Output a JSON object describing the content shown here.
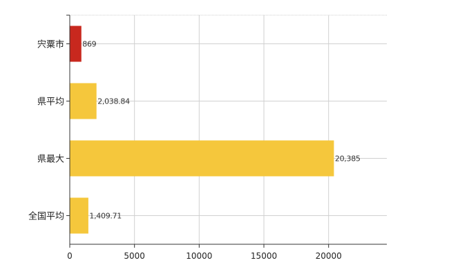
{
  "chart_data": {
    "type": "bar",
    "orientation": "horizontal",
    "categories": [
      "宍粟市",
      "県平均",
      "県最大",
      "全国平均"
    ],
    "values": [
      869,
      2038.84,
      20385,
      1409.71
    ],
    "value_labels": [
      "869",
      "2,038.84",
      "20,385",
      "1,409.71"
    ],
    "bar_colors": [
      "#c8281e",
      "#f5c73c",
      "#f5c73c",
      "#f5c73c"
    ],
    "xlim": [
      0,
      24500
    ],
    "xticks": [
      0,
      5000,
      10000,
      15000,
      20000
    ],
    "xtick_labels": [
      "0",
      "5000",
      "10000",
      "15000",
      "20000"
    ],
    "grid": true,
    "legend": "none"
  }
}
